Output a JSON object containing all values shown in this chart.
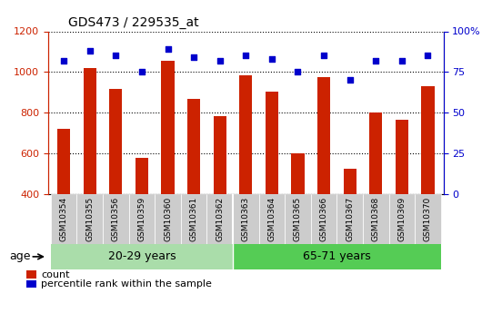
{
  "title": "GDS473 / 229535_at",
  "samples": [
    "GSM10354",
    "GSM10355",
    "GSM10356",
    "GSM10359",
    "GSM10360",
    "GSM10361",
    "GSM10362",
    "GSM10363",
    "GSM10364",
    "GSM10365",
    "GSM10366",
    "GSM10367",
    "GSM10368",
    "GSM10369",
    "GSM10370"
  ],
  "counts": [
    720,
    1020,
    915,
    580,
    1055,
    868,
    785,
    985,
    905,
    600,
    975,
    525,
    800,
    765,
    930
  ],
  "percentiles": [
    82,
    88,
    85,
    75,
    89,
    84,
    82,
    85,
    83,
    75,
    85,
    70,
    82,
    82,
    85
  ],
  "group1_label": "20-29 years",
  "group2_label": "65-71 years",
  "group1_count": 7,
  "group2_count": 8,
  "ylim_left": [
    400,
    1200
  ],
  "ylim_right": [
    0,
    100
  ],
  "yticks_left": [
    400,
    600,
    800,
    1000,
    1200
  ],
  "yticks_right": [
    0,
    25,
    50,
    75,
    100
  ],
  "bar_color": "#cc2200",
  "dot_color": "#0000cc",
  "group1_bg": "#aaddaa",
  "group2_bg": "#55cc55",
  "tick_bg": "#cccccc",
  "legend_count_label": "count",
  "legend_pct_label": "percentile rank within the sample",
  "age_label": "age",
  "bar_width": 0.5
}
